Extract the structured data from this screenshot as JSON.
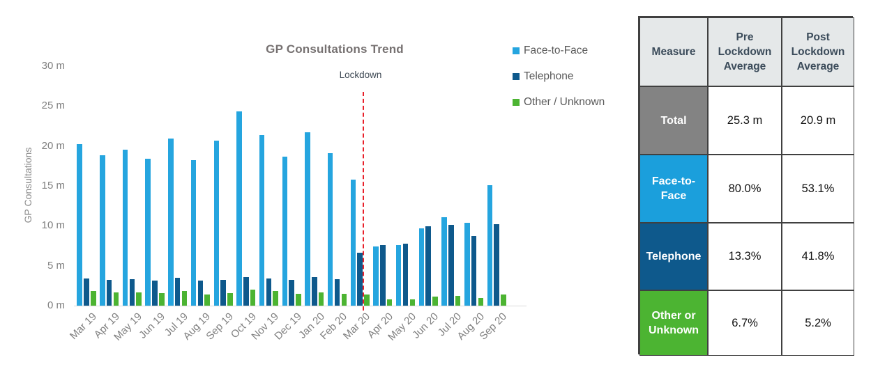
{
  "chart_data": {
    "type": "bar",
    "title": "GP Consultations Trend",
    "ylabel": "GP Consultations",
    "xlabel": "",
    "grid": false,
    "legend_position": "right-top",
    "ylim": [
      0,
      30
    ],
    "yticks": [
      0,
      5,
      10,
      15,
      20,
      25,
      30
    ],
    "ytick_labels": [
      "0 m",
      "5 m",
      "10 m",
      "15 m",
      "20 m",
      "25 m",
      "30 m"
    ],
    "categories": [
      "Mar 19",
      "Apr 19",
      "May 19",
      "Jun 19",
      "Jul 19",
      "Aug 19",
      "Sep 19",
      "Oct 19",
      "Nov 19",
      "Dec 19",
      "Jan 20",
      "Feb 20",
      "Mar 20",
      "Apr 20",
      "May 20",
      "Jun 20",
      "Jul 20",
      "Aug 20",
      "Sep 20"
    ],
    "series": [
      {
        "name": "Face-to-Face",
        "color": "#25a5df",
        "values": [
          20.2,
          18.8,
          19.5,
          18.4,
          20.9,
          18.2,
          20.7,
          24.3,
          21.4,
          18.7,
          21.7,
          19.1,
          15.8,
          7.4,
          7.6,
          9.7,
          11.1,
          10.4,
          15.1
        ]
      },
      {
        "name": "Telephone",
        "color": "#0e598c",
        "values": [
          3.4,
          3.2,
          3.3,
          3.1,
          3.5,
          3.1,
          3.2,
          3.6,
          3.4,
          3.2,
          3.6,
          3.3,
          6.6,
          7.6,
          7.8,
          9.9,
          10.1,
          8.7,
          10.2
        ]
      },
      {
        "name": "Other / Unknown",
        "color": "#4cb432",
        "values": [
          1.8,
          1.7,
          1.7,
          1.6,
          1.8,
          1.4,
          1.6,
          2.0,
          1.8,
          1.5,
          1.7,
          1.5,
          1.4,
          0.8,
          0.8,
          1.1,
          1.2,
          1.0,
          1.4
        ]
      }
    ],
    "annotation": {
      "label": "Lockdown",
      "x_category": "Mar 20",
      "style": "vertical-dashed-line",
      "color": "#e8202a"
    }
  },
  "table": {
    "headers": [
      "Measure",
      "Pre Lockdown Average",
      "Post Lockdown Average"
    ],
    "rows": [
      {
        "measure": "Total",
        "pre": "25.3 m",
        "post": "20.9 m",
        "color": "#838383"
      },
      {
        "measure": "Face-to-Face",
        "pre": "80.0%",
        "post": "53.1%",
        "color": "#1b9fdc"
      },
      {
        "measure": "Telephone",
        "pre": "13.3%",
        "post": "41.8%",
        "color": "#0e598c"
      },
      {
        "measure": "Other or Unknown",
        "pre": "6.7%",
        "post": "5.2%",
        "color": "#4cb432"
      }
    ]
  }
}
